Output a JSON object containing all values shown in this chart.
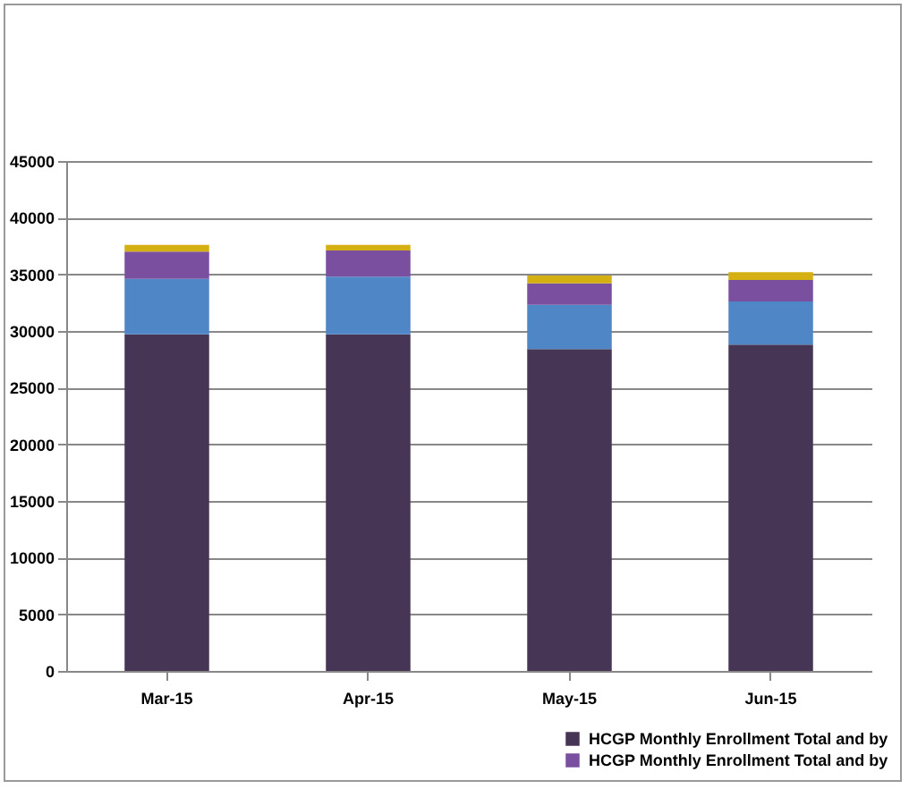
{
  "chart_data": {
    "type": "bar",
    "stacked": true,
    "categories": [
      "Mar-15",
      "Apr-15",
      "May-15",
      "Jun-15"
    ],
    "series": [
      {
        "name": "HCGP Monthly Enrollment Total and by",
        "color": "#463555",
        "values": [
          29700,
          29700,
          28400,
          28800
        ]
      },
      {
        "color": "#4f86c6",
        "values": [
          4900,
          5100,
          3900,
          3800
        ]
      },
      {
        "name": "HCGP Monthly Enrollment Total and by",
        "color": "#7b4fa0",
        "values": [
          2400,
          2300,
          1900,
          1900
        ]
      },
      {
        "color": "#d4b012",
        "values": [
          600,
          500,
          700,
          700
        ]
      }
    ],
    "ylim": [
      0,
      45000
    ],
    "yticks": [
      0,
      5000,
      10000,
      15000,
      20000,
      25000,
      30000,
      35000,
      40000,
      45000
    ],
    "grid": "y",
    "legend": "bottom right"
  }
}
